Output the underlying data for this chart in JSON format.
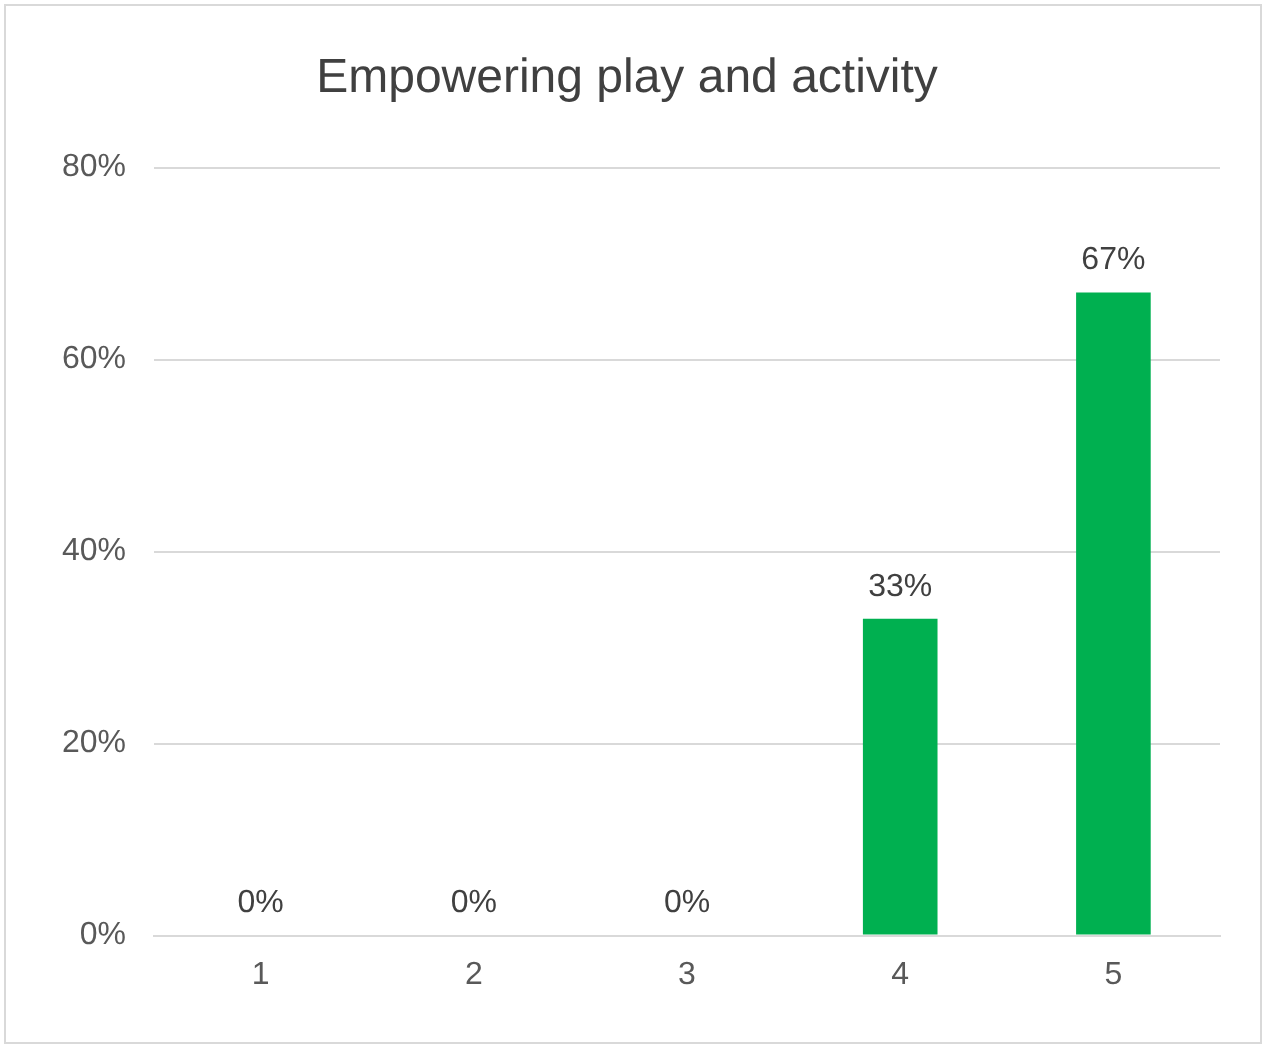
{
  "chart_data": {
    "type": "bar",
    "title": "Empowering play and activity",
    "categories": [
      "1",
      "2",
      "3",
      "4",
      "5"
    ],
    "values": [
      0,
      0,
      0,
      33,
      67
    ],
    "color": "#00b050",
    "value_labels": [
      "0%",
      "0%",
      "0%",
      "33%",
      "67%"
    ],
    "ylim": [
      0,
      80
    ],
    "yticks": [
      {
        "value": 0,
        "label": "0%"
      },
      {
        "value": 20,
        "label": "20%"
      },
      {
        "value": 40,
        "label": "40%"
      },
      {
        "value": 60,
        "label": "60%"
      },
      {
        "value": 80,
        "label": "80%"
      }
    ],
    "grid": "y",
    "legend": false
  }
}
